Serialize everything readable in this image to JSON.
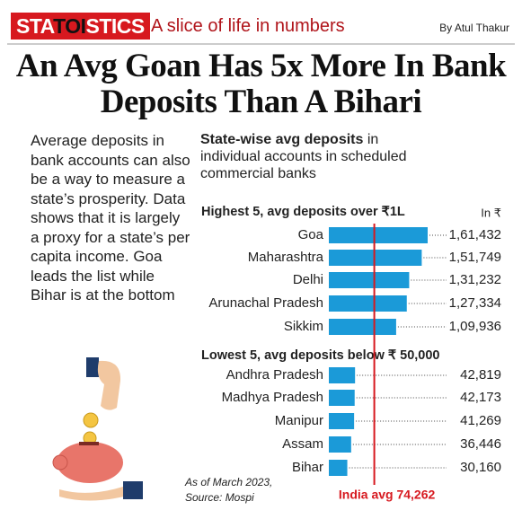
{
  "header": {
    "brand_start": "STA",
    "brand_mid": "TOI",
    "brand_end": "STICS",
    "tagline": "A slice of life in numbers",
    "byline": "By Atul Thakur"
  },
  "title": "An Avg Goan Has 5x More In Bank Deposits Than A Bihari",
  "body": "Average deposits in bank accounts can also be a way to measure a state’s prosperity. Data shows that it is largely a proxy for a state’s per capita income. Goa leads the list while Bihar is at the bottom",
  "chart_heading": {
    "bold": "State-wise avg deposits",
    "rest": "in individual accounts in scheduled commercial banks"
  },
  "unit": "In ₹",
  "reference": {
    "value": 74262,
    "label": "India avg 74,262"
  },
  "note": [
    "As of March 2023,",
    "Source: Mospi"
  ],
  "chart_data": [
    {
      "type": "bar",
      "orientation": "horizontal",
      "title": "Highest 5, avg deposits over ₹1L",
      "color": "#1b9ad8",
      "categories": [
        "Goa",
        "Maharashtra",
        "Delhi",
        "Arunachal Pradesh",
        "Sikkim"
      ],
      "values": [
        161432,
        151749,
        131232,
        127334,
        109936
      ],
      "value_labels": [
        "1,61,432",
        "1,51,749",
        "1,31,232",
        "1,27,334",
        "1,09,936"
      ]
    },
    {
      "type": "bar",
      "orientation": "horizontal",
      "title": "Lowest 5, avg deposits below ₹ 50,000",
      "color": "#1b9ad8",
      "categories": [
        "Andhra Pradesh",
        "Madhya Pradesh",
        "Manipur",
        "Assam",
        "Bihar"
      ],
      "values": [
        42819,
        42173,
        41269,
        36446,
        30160
      ],
      "value_labels": [
        "42,819",
        "42,173",
        "41,269",
        "36,446",
        "30,160"
      ]
    }
  ]
}
